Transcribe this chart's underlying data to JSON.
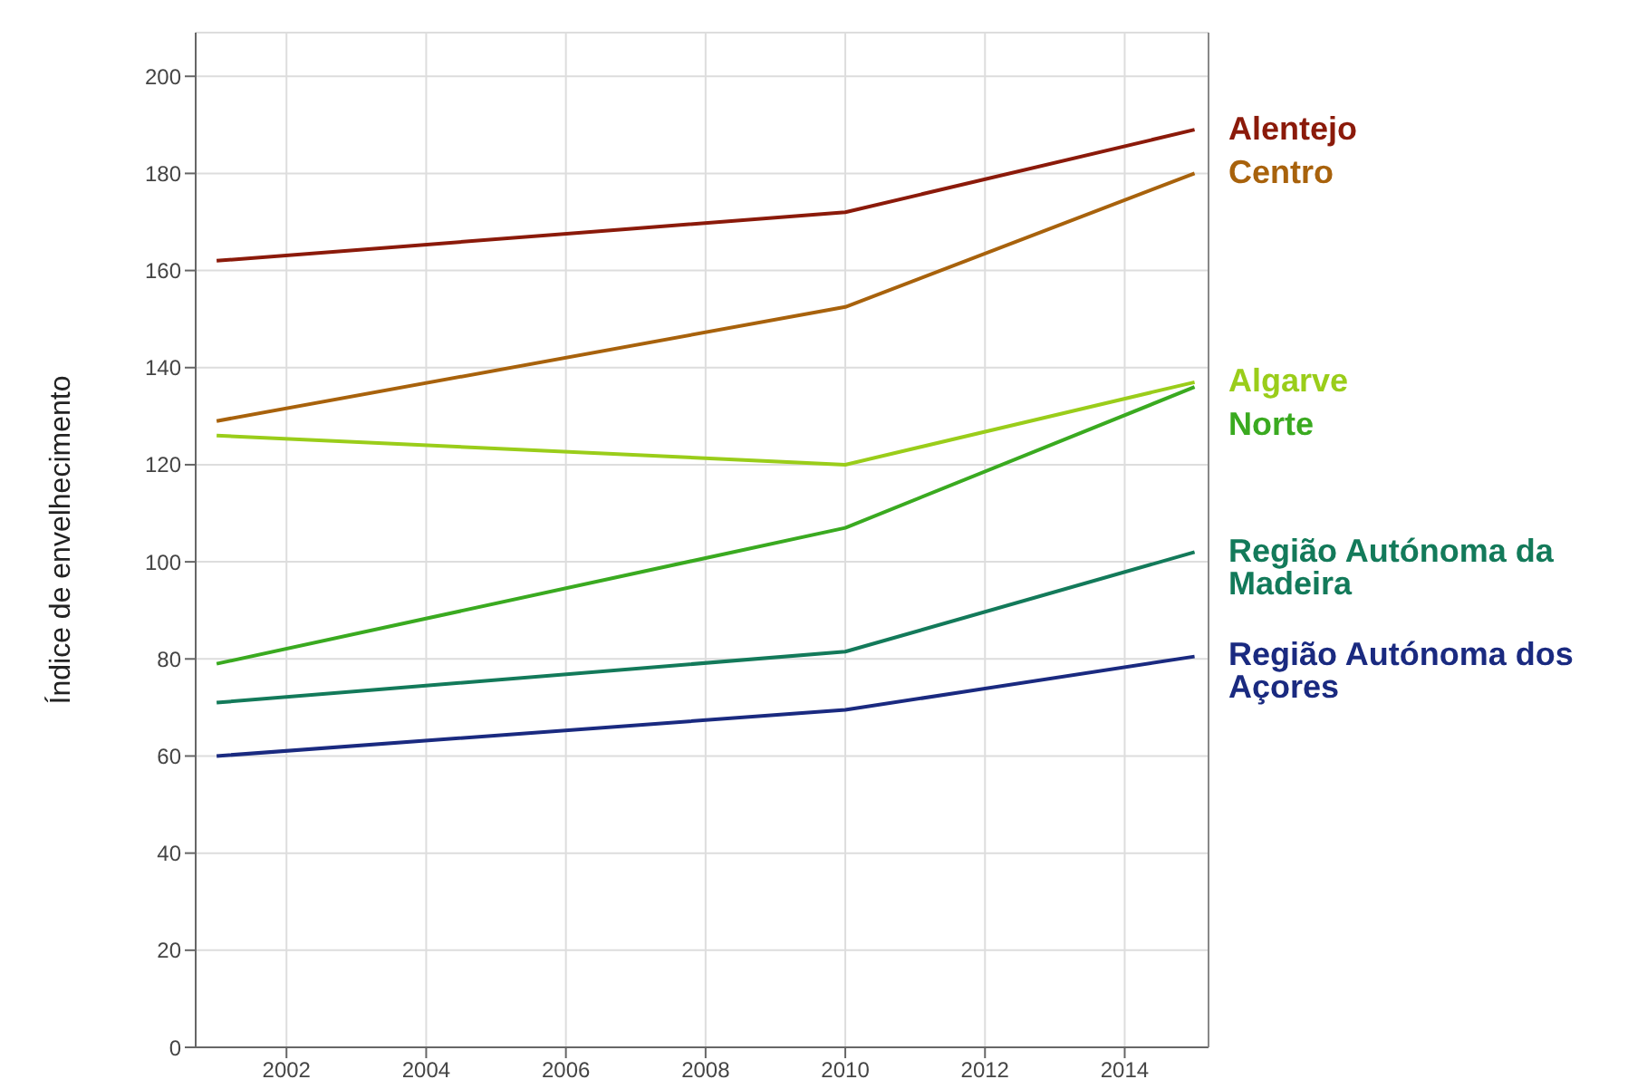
{
  "chart_data": {
    "type": "line",
    "ylabel": "Índice de envelhecimento",
    "x": [
      2001,
      2010,
      2015
    ],
    "xlim": [
      2000.7,
      2015.2
    ],
    "xticks": [
      2002,
      2004,
      2006,
      2008,
      2010,
      2012,
      2014
    ],
    "ylim": [
      0,
      209
    ],
    "yticks": [
      0,
      20,
      40,
      60,
      80,
      100,
      120,
      140,
      160,
      180,
      200
    ],
    "grid": true,
    "marker": "none",
    "line_style": "solid",
    "legend": false,
    "series": [
      {
        "name": "Alentejo",
        "color": "#8b1a0a",
        "values": [
          162,
          172,
          189
        ]
      },
      {
        "name": "Centro",
        "color": "#a8620c",
        "values": [
          129,
          152.5,
          180
        ]
      },
      {
        "name": "Algarve",
        "color": "#9acd1a",
        "values": [
          126,
          120,
          137
        ]
      },
      {
        "name": "Norte",
        "color": "#3aaa20",
        "values": [
          79,
          107,
          136
        ]
      },
      {
        "name": "Região Autónoma da Madeira",
        "color": "#137a5a",
        "values": [
          71,
          81.5,
          102
        ]
      },
      {
        "name": "Região Autónoma dos Açores",
        "color": "#1a2a80",
        "values": [
          60,
          69.5,
          80.5
        ]
      }
    ]
  }
}
